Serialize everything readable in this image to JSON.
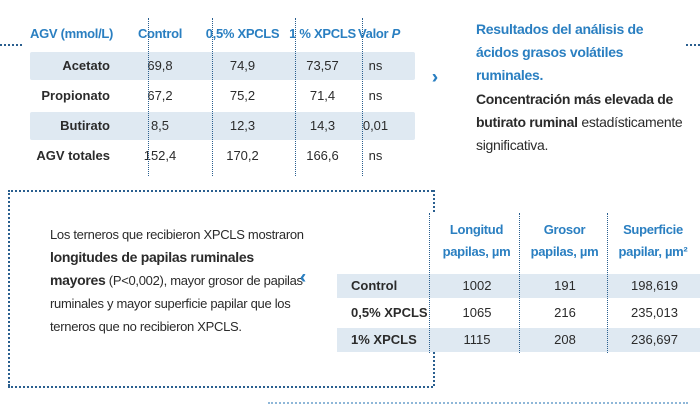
{
  "agv_table": {
    "headers": [
      "AGV (mmol/L)",
      "Control",
      "0,5% XPCLS",
      "1 % XPCLS",
      "Valor P"
    ],
    "rows": [
      {
        "label": "Acetato",
        "values": [
          "69,8",
          "74,9",
          "73,57",
          "ns"
        ]
      },
      {
        "label": "Propionato",
        "values": [
          "67,2",
          "75,2",
          "71,4",
          "ns"
        ]
      },
      {
        "label": "Butirato",
        "values": [
          "8,5",
          "12,3",
          "14,3",
          "0,01"
        ]
      },
      {
        "label": "AGV totales",
        "values": [
          "152,4",
          "170,2",
          "166,6",
          "ns"
        ]
      }
    ]
  },
  "results_box": {
    "title": "Resultados del análisis de ácidos grasos volátiles ruminales.",
    "body_bold": "Concentración más elevada de butirato ruminal",
    "body_rest": " estadísticamente significativa."
  },
  "papilas_text": {
    "part1": "Los terneros que recibieron XPCLS mostraron ",
    "bold": "longitudes de papilas ruminales mayores",
    "part2": " (P<0,002), mayor grosor de papilas ruminales y mayor superficie papilar que los terneros que no recibieron XPCLS."
  },
  "papilas_table": {
    "headers": [
      {
        "line1": "Longitud",
        "line2": "papilas, µm"
      },
      {
        "line1": "Grosor",
        "line2": "papilas, µm"
      },
      {
        "line1": "Superficie",
        "line2": "papilar, µm²"
      }
    ],
    "rows": [
      {
        "label": "Control",
        "values": [
          "1002",
          "191",
          "198,619"
        ]
      },
      {
        "label": "0,5% XPCLS",
        "values": [
          "1065",
          "216",
          "235,013"
        ]
      },
      {
        "label": "1% XPCLS",
        "values": [
          "1115",
          "208",
          "236,697"
        ]
      }
    ]
  },
  "icons": {
    "right_arrow": "double-chevron-right-icon",
    "left_arrow": "double-chevron-left-icon"
  },
  "colors": {
    "accent": "#2a7fc1",
    "row_shade": "#dfe9f2",
    "dots": "#2a5f8f"
  }
}
